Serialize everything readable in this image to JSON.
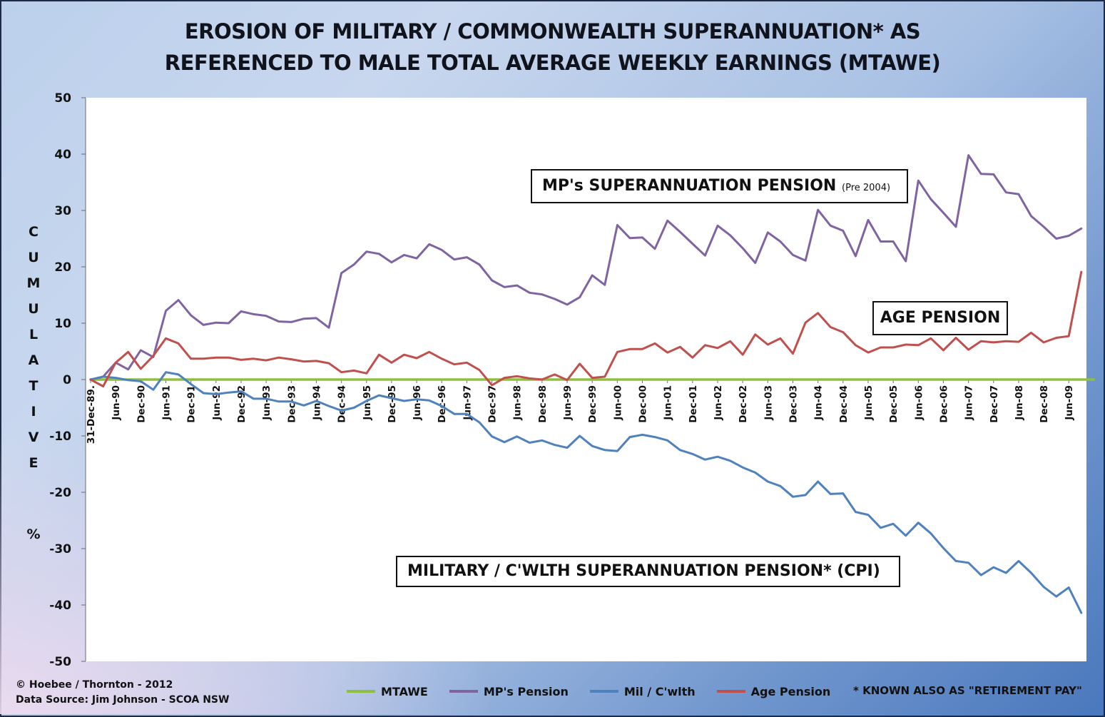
{
  "title_lines": [
    "EROSION OF MILITARY / COMMONWEALTH SUPERANNUATION* AS",
    "REFERENCED TO MALE TOTAL AVERAGE WEEKLY EARNINGS (MTAWE)"
  ],
  "annotations": {
    "mp_box": "MP's SUPERANNUATION PENSION",
    "mp_box_small": "(Pre 2004)",
    "age_box": "AGE PENSION",
    "mil_box": "MILITARY / C'WLTH SUPERANNUATION PENSION* (CPI)"
  },
  "credits": {
    "line1": "© Hoebee / Thornton - 2012",
    "line2": "Data Source: Jim Johnson - SCOA NSW"
  },
  "footnote": "* KNOWN ALSO AS \"RETIREMENT PAY\"",
  "colors": {
    "mtawe": "#8fbf3f",
    "mp": "#8064a2",
    "mil": "#4f81bd",
    "age": "#c0504d"
  },
  "chart_data": {
    "type": "line",
    "title": "EROSION OF MILITARY / COMMONWEALTH SUPERANNUATION* AS REFERENCED TO MALE TOTAL AVERAGE WEEKLY EARNINGS (MTAWE)",
    "ylabel": "CUMULATIVE %",
    "ylim": [
      -50,
      50
    ],
    "yticks": [
      50,
      40,
      30,
      20,
      10,
      0,
      -10,
      -20,
      -30,
      -40,
      -50
    ],
    "grid": false,
    "legend_position": "bottom",
    "x_tick_labels": [
      "31-Dec-89.",
      "Jun-90",
      "Dec-90",
      "Jun-91",
      "Dec-91",
      "Jun-92",
      "Dec-92",
      "Jun-93",
      "Dec-93",
      "Jun-94",
      "Dec-94",
      "Jun-95",
      "Dec-95",
      "Jun-96",
      "Dec-96",
      "Jun-97",
      "Dec-97",
      "Jun-98",
      "Dec-98",
      "Jun-99",
      "Dec-99",
      "Jun-00",
      "Dec-00",
      "Jun-01",
      "Dec-01",
      "Jun-02",
      "Dec-02",
      "Jun-03",
      "Dec-03",
      "Jun-04",
      "Dec-04",
      "Jun-05",
      "Dec-05",
      "Jun-06",
      "Dec-06",
      "Jun-07",
      "Dec-07",
      "Jun-08",
      "Dec-08",
      "Jun-09"
    ],
    "series": [
      {
        "name": "MTAWE",
        "color": "#8fbf3f",
        "values": [
          0,
          0,
          0,
          0,
          0,
          0,
          0,
          0,
          0,
          0,
          0,
          0,
          0,
          0,
          0,
          0,
          0,
          0,
          0,
          0,
          0,
          0,
          0,
          0,
          0,
          0,
          0,
          0,
          0,
          0,
          0,
          0,
          0,
          0,
          0,
          0,
          0,
          0,
          0,
          0,
          0,
          0,
          0,
          0,
          0,
          0,
          0,
          0,
          0,
          0,
          0,
          0,
          0,
          0,
          0,
          0,
          0,
          0,
          0,
          0,
          0,
          0,
          0,
          0,
          0,
          0,
          0,
          0,
          0,
          0,
          0,
          0,
          0,
          0,
          0,
          0,
          0,
          0,
          0,
          0,
          0
        ]
      },
      {
        "name": "MP's Pension",
        "color": "#8064a2",
        "values": [
          0,
          0.5,
          3,
          1.8,
          5.2,
          4,
          12.2,
          14.1,
          11.4,
          9.7,
          10.1,
          10,
          12.1,
          11.6,
          11.3,
          10.3,
          10.2,
          10.8,
          10.9,
          9.2,
          18.9,
          20.4,
          22.7,
          22.3,
          20.8,
          22.1,
          21.5,
          24,
          23,
          21.3,
          21.7,
          20.4,
          17.6,
          16.4,
          16.7,
          15.4,
          15.1,
          14.3,
          13.3,
          14.6,
          18.5,
          16.8,
          27.4,
          25.1,
          25.2,
          23.2,
          28.2,
          26.2,
          24.1,
          22,
          27.3,
          25.6,
          23.3,
          20.7,
          26.1,
          24.5,
          22.1,
          21.1,
          30.1,
          27.3,
          26.4,
          21.9,
          28.3,
          24.5,
          24.5,
          21,
          35.3,
          32,
          29.6,
          27.1,
          39.8,
          36.5,
          36.4,
          33.2,
          32.9,
          29,
          27.1,
          25,
          25.5,
          26.8
        ]
      },
      {
        "name": "Mil / C'wlth",
        "color": "#4f81bd",
        "values": [
          0,
          0.5,
          0.3,
          -0.1,
          -0.3,
          -1.8,
          1.3,
          0.9,
          -0.8,
          -2.4,
          -2.6,
          -2.3,
          -2.1,
          -3.4,
          -3.4,
          -3.9,
          -3.9,
          -4.6,
          -3.8,
          -4.7,
          -5.5,
          -5,
          -3.8,
          -2.8,
          -3.3,
          -3.8,
          -3.5,
          -3.7,
          -4.7,
          -6.1,
          -6.1,
          -7.6,
          -10.1,
          -11.1,
          -10.1,
          -11.2,
          -10.8,
          -11.6,
          -12.1,
          -10,
          -11.8,
          -12.5,
          -12.7,
          -10.2,
          -9.8,
          -10.2,
          -10.8,
          -12.5,
          -13.2,
          -14.2,
          -13.7,
          -14.4,
          -15.6,
          -16.5,
          -18.1,
          -18.9,
          -20.8,
          -20.5,
          -18.1,
          -20.3,
          -20.2,
          -23.5,
          -24,
          -26.3,
          -25.6,
          -27.7,
          -25.4,
          -27.3,
          -29.9,
          -32.2,
          -32.5,
          -34.7,
          -33.3,
          -34.3,
          -32.2,
          -34.3,
          -36.8,
          -38.5,
          -36.9,
          -41.4
        ]
      },
      {
        "name": "Age Pension",
        "color": "#c0504d",
        "values": [
          0,
          -1.2,
          3,
          4.9,
          1.9,
          4.2,
          7.3,
          6.4,
          3.7,
          3.7,
          3.9,
          3.9,
          3.5,
          3.7,
          3.4,
          3.9,
          3.6,
          3.2,
          3.3,
          2.9,
          1.3,
          1.6,
          1.1,
          4.4,
          3,
          4.4,
          3.8,
          4.9,
          3.7,
          2.7,
          3,
          1.7,
          -1,
          0.3,
          0.6,
          0.2,
          0,
          0.9,
          -0.1,
          2.8,
          0.3,
          0.5,
          4.9,
          5.4,
          5.4,
          6.4,
          4.8,
          5.8,
          3.9,
          6.1,
          5.6,
          6.8,
          4.4,
          8,
          6.2,
          7.3,
          4.6,
          10.1,
          11.8,
          9.3,
          8.4,
          6.1,
          4.8,
          5.7,
          5.7,
          6.2,
          6.1,
          7.3,
          5.2,
          7.4,
          5.3,
          6.8,
          6.6,
          6.8,
          6.7,
          8.3,
          6.6,
          7.4,
          7.7,
          19.1
        ]
      }
    ]
  }
}
